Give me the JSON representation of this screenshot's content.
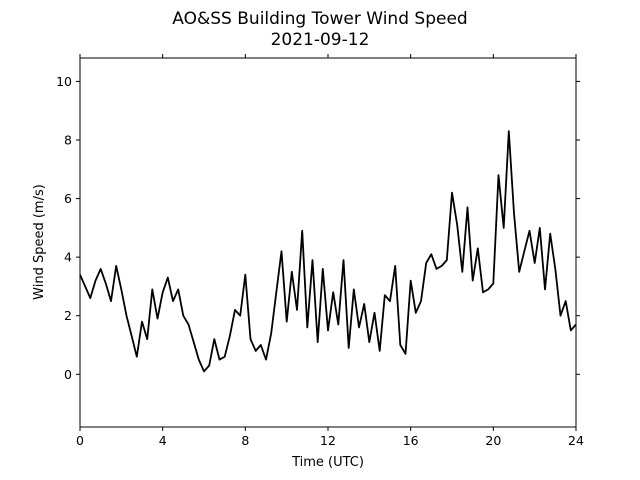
{
  "chart_data": {
    "type": "line",
    "title": "AO&SS Building Tower Wind Speed",
    "subtitle": "2021-09-12",
    "xlabel": "Time (UTC)",
    "ylabel": "Wind Speed (m/s)",
    "xlim": [
      0,
      24
    ],
    "ylim": [
      -1.8,
      10.8
    ],
    "xticks": [
      0,
      4,
      8,
      12,
      16,
      20,
      24
    ],
    "yticks": [
      0,
      2,
      4,
      6,
      8,
      10
    ],
    "grid": false,
    "legend": "none",
    "series": [
      {
        "color": "#000000",
        "x": [
          0.0,
          0.25,
          0.5,
          0.75,
          1.0,
          1.25,
          1.5,
          1.75,
          2.0,
          2.25,
          2.5,
          2.75,
          3.0,
          3.25,
          3.5,
          3.75,
          4.0,
          4.25,
          4.5,
          4.75,
          5.0,
          5.25,
          5.5,
          5.75,
          6.0,
          6.25,
          6.5,
          6.75,
          7.0,
          7.25,
          7.5,
          7.75,
          8.0,
          8.25,
          8.5,
          8.75,
          9.0,
          9.25,
          9.5,
          9.75,
          10.0,
          10.25,
          10.5,
          10.75,
          11.0,
          11.25,
          11.5,
          11.75,
          12.0,
          12.25,
          12.5,
          12.75,
          13.0,
          13.25,
          13.5,
          13.75,
          14.0,
          14.25,
          14.5,
          14.75,
          15.0,
          15.25,
          15.5,
          15.75,
          16.0,
          16.25,
          16.5,
          16.75,
          17.0,
          17.25,
          17.5,
          17.75,
          18.0,
          18.25,
          18.5,
          18.75,
          19.0,
          19.25,
          19.5,
          19.75,
          20.0,
          20.25,
          20.5,
          20.75,
          21.0,
          21.25,
          21.5,
          21.75,
          22.0,
          22.25,
          22.5,
          22.75,
          23.0,
          23.25,
          23.5,
          23.75,
          24.0
        ],
        "y": [
          3.4,
          3.0,
          2.6,
          3.2,
          3.6,
          3.1,
          2.5,
          3.7,
          2.9,
          2.0,
          1.3,
          0.6,
          1.8,
          1.2,
          2.9,
          1.9,
          2.8,
          3.3,
          2.5,
          2.9,
          2.0,
          1.7,
          1.1,
          0.5,
          0.1,
          0.3,
          1.2,
          0.5,
          0.6,
          1.3,
          2.2,
          2.0,
          3.4,
          1.2,
          0.8,
          1.0,
          0.5,
          1.4,
          2.8,
          4.2,
          1.8,
          3.5,
          2.2,
          4.9,
          1.6,
          3.9,
          1.1,
          3.6,
          1.5,
          2.8,
          1.7,
          3.9,
          0.9,
          2.9,
          1.6,
          2.4,
          1.1,
          2.1,
          0.8,
          2.7,
          2.5,
          3.7,
          1.0,
          0.7,
          3.2,
          2.1,
          2.5,
          3.8,
          4.1,
          3.6,
          3.7,
          3.9,
          6.2,
          5.1,
          3.5,
          5.7,
          3.2,
          4.3,
          2.8,
          2.9,
          3.1,
          6.8,
          5.0,
          8.3,
          5.5,
          3.5,
          4.2,
          4.9,
          3.8,
          5.0,
          2.9,
          4.8,
          3.6,
          2.0,
          2.5,
          1.5,
          1.7
        ]
      }
    ]
  }
}
